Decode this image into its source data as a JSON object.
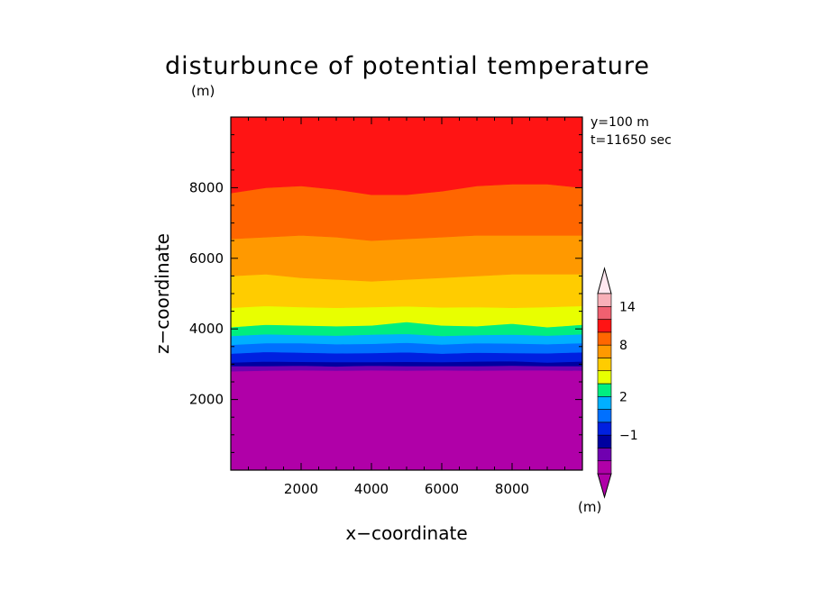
{
  "chart_data": {
    "type": "heatmap",
    "title": "disturbunce of potential temperature",
    "xlabel": "x−coordinate",
    "ylabel": "z−coordinate",
    "x_unit": "(m)",
    "y_unit": "(m)",
    "annotations": [
      "y=100 m",
      "t=11650 sec"
    ],
    "xlim": [
      0,
      10000
    ],
    "ylim": [
      0,
      10000
    ],
    "x_ticks": [
      2000,
      4000,
      6000,
      8000
    ],
    "y_ticks": [
      2000,
      4000,
      6000,
      8000
    ],
    "x_tick_labels": [
      "2000",
      "4000",
      "6000",
      "8000"
    ],
    "y_tick_labels": [
      "2000",
      "4000",
      "6000",
      "8000"
    ],
    "x_samples": [
      0,
      1000,
      2000,
      3000,
      4000,
      5000,
      6000,
      7000,
      8000,
      9000,
      10000
    ],
    "contour_boundaries": [
      {
        "z": [
          2800,
          2820,
          2830,
          2820,
          2830,
          2820,
          2830,
          2820,
          2830,
          2830,
          2820
        ]
      },
      {
        "z": [
          2950,
          2950,
          2960,
          2940,
          2960,
          2950,
          2950,
          2950,
          2960,
          2950,
          2950
        ]
      },
      {
        "z": [
          3050,
          3080,
          3070,
          3060,
          3060,
          3070,
          3060,
          3080,
          3090,
          3050,
          3080
        ]
      },
      {
        "z": [
          3300,
          3350,
          3330,
          3310,
          3320,
          3340,
          3300,
          3330,
          3320,
          3310,
          3340
        ]
      },
      {
        "z": [
          3550,
          3600,
          3600,
          3570,
          3580,
          3610,
          3560,
          3600,
          3590,
          3570,
          3600
        ]
      },
      {
        "z": [
          3800,
          3850,
          3830,
          3810,
          3840,
          3860,
          3800,
          3830,
          3840,
          3810,
          3850
        ]
      },
      {
        "z": [
          4050,
          4120,
          4100,
          4080,
          4100,
          4200,
          4100,
          4080,
          4150,
          4050,
          4120
        ]
      },
      {
        "z": [
          4600,
          4650,
          4620,
          4600,
          4620,
          4640,
          4610,
          4620,
          4600,
          4620,
          4650
        ]
      },
      {
        "z": [
          5500,
          5550,
          5450,
          5400,
          5350,
          5400,
          5450,
          5500,
          5550,
          5550,
          5550
        ]
      },
      {
        "z": [
          6550,
          6600,
          6650,
          6600,
          6500,
          6550,
          6600,
          6650,
          6650,
          6650,
          6650
        ]
      },
      {
        "z": [
          7850,
          8000,
          8050,
          7950,
          7800,
          7800,
          7900,
          8050,
          8100,
          8100,
          8000
        ]
      }
    ],
    "band_colors": [
      "#b000a8",
      "#7000b0",
      "#0000a0",
      "#0020e0",
      "#0070ff",
      "#00b0ff",
      "#00ee80",
      "#e8ff00",
      "#ffcc00",
      "#ff9900",
      "#ff6600",
      "#ff1414"
    ],
    "colorbar": {
      "colors": [
        "#b000a8",
        "#7000b0",
        "#0000a0",
        "#0020e0",
        "#0070ff",
        "#00b0ff",
        "#00ee80",
        "#e8ff00",
        "#ffcc00",
        "#ff9900",
        "#ff6600",
        "#ff1414",
        "#f06070",
        "#f8b0b8"
      ],
      "labels": [
        {
          "text": "−1",
          "index": 3
        },
        {
          "text": "2",
          "index": 6
        },
        {
          "text": "8",
          "index": 10
        },
        {
          "text": "14",
          "index": 13
        }
      ],
      "unit": "(m)",
      "top_arrow_color": "#ffe8f0",
      "bottom_arrow_color": "#b000a8"
    }
  }
}
